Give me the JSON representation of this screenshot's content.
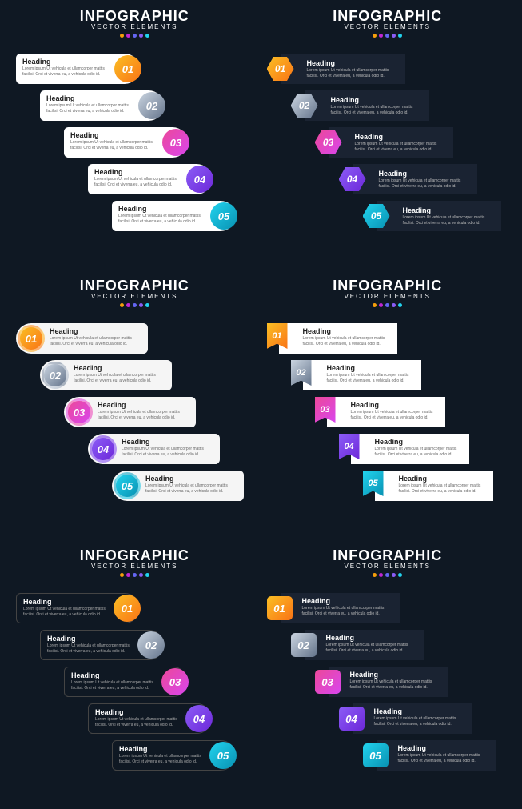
{
  "header": {
    "title": "INFOGRAPHIC",
    "subtitle": "VECTOR ELEMENTS",
    "dot_colors": [
      "#f59e0b",
      "#c026d3",
      "#6366f1",
      "#8b5cf6",
      "#22d3ee"
    ]
  },
  "step_heading": "Heading",
  "step_body": "Lorem ipsum Ut vehicula et ullamcorper mattis facilisi. Orci et viverra eu, a vehicula odio id.",
  "numbers": [
    "01",
    "02",
    "03",
    "04",
    "05"
  ],
  "colors": {
    "c1": "#f59e0b",
    "c2": "#94a3b8",
    "c3": "#d946ef",
    "c4": "#7c3aed",
    "c5": "#22d3ee"
  },
  "gradients": {
    "g1": "linear-gradient(135deg,#fbbf24,#f97316)",
    "g2": "linear-gradient(135deg,#cbd5e1,#64748b)",
    "g3": "linear-gradient(135deg,#ec4899,#d946ef)",
    "g4": "linear-gradient(135deg,#8b5cf6,#6d28d9)",
    "g5": "linear-gradient(135deg,#22d3ee,#0891b2)"
  }
}
